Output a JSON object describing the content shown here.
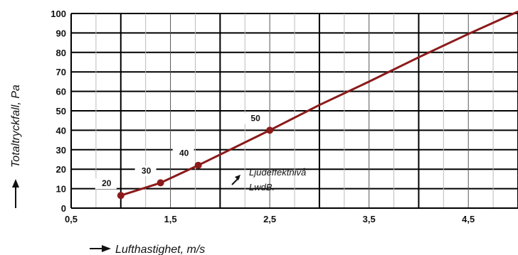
{
  "chart_data": {
    "type": "line",
    "xlabel": "Lufthastighet, m/s",
    "ylabel": "Totaltryckfall, Pa",
    "xlim": [
      0.5,
      5.0
    ],
    "ylim": [
      0,
      100
    ],
    "x_ticks": [
      "0,5",
      "1,5",
      "2,5",
      "3,5",
      "4,5"
    ],
    "y_ticks": [
      "0",
      "10",
      "20",
      "30",
      "40",
      "50",
      "60",
      "70",
      "80",
      "90",
      "100"
    ],
    "grid": true,
    "line_color": "#8b1a1a",
    "curve": {
      "x": [
        1.0,
        1.4,
        1.78,
        2.5,
        3.0,
        3.5,
        4.0,
        4.5,
        5.0
      ],
      "y": [
        6.5,
        13,
        22,
        40,
        53,
        65,
        77.5,
        89.5,
        101
      ]
    },
    "points": [
      {
        "x": 1.0,
        "y": 6.5,
        "label": "20"
      },
      {
        "x": 1.4,
        "y": 13,
        "label": "30"
      },
      {
        "x": 1.78,
        "y": 22,
        "label": "40"
      },
      {
        "x": 2.5,
        "y": 40,
        "label": "50"
      }
    ],
    "annotation": {
      "line1": "Ljudeffektnivå",
      "line2": "LwdB."
    }
  }
}
